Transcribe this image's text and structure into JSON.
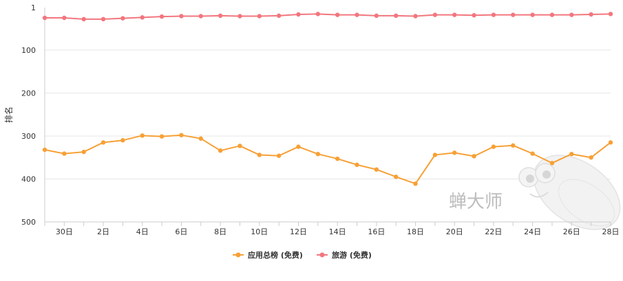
{
  "chart_data": {
    "type": "line",
    "ylabel": "排名",
    "y_reversed": true,
    "ylim": [
      1,
      500
    ],
    "y_ticks": [
      "1",
      "100",
      "200",
      "300",
      "400",
      "500"
    ],
    "x_tick_labels": [
      "30日",
      "2日",
      "4日",
      "6日",
      "8日",
      "10日",
      "12日",
      "14日",
      "16日",
      "18日",
      "20日",
      "22日",
      "24日",
      "26日",
      "28日"
    ],
    "grid": "horizontal",
    "legend_position": "bottom-center",
    "series": [
      {
        "name": "应用总榜 (免费)",
        "color": "#f7a035",
        "values": [
          332,
          341,
          337,
          315,
          310,
          299,
          301,
          298,
          306,
          334,
          323,
          344,
          346,
          325,
          342,
          353,
          367,
          378,
          395,
          411,
          344,
          339,
          347,
          325,
          322,
          341,
          363,
          342,
          350,
          315
        ]
      },
      {
        "name": "旅游 (免费)",
        "color": "#f2767e",
        "values": [
          25,
          25,
          28,
          28,
          26,
          24,
          22,
          21,
          21,
          20,
          21,
          21,
          20,
          17,
          16,
          18,
          18,
          20,
          20,
          21,
          18,
          18,
          19,
          18,
          18,
          18,
          18,
          18,
          17,
          16
        ]
      }
    ]
  },
  "watermark": {
    "text": "蝉大师",
    "color": "#bdbdbd"
  },
  "colors": {
    "axis": "#cccccc",
    "grid": "#e6e6e6",
    "text": "#333333"
  }
}
